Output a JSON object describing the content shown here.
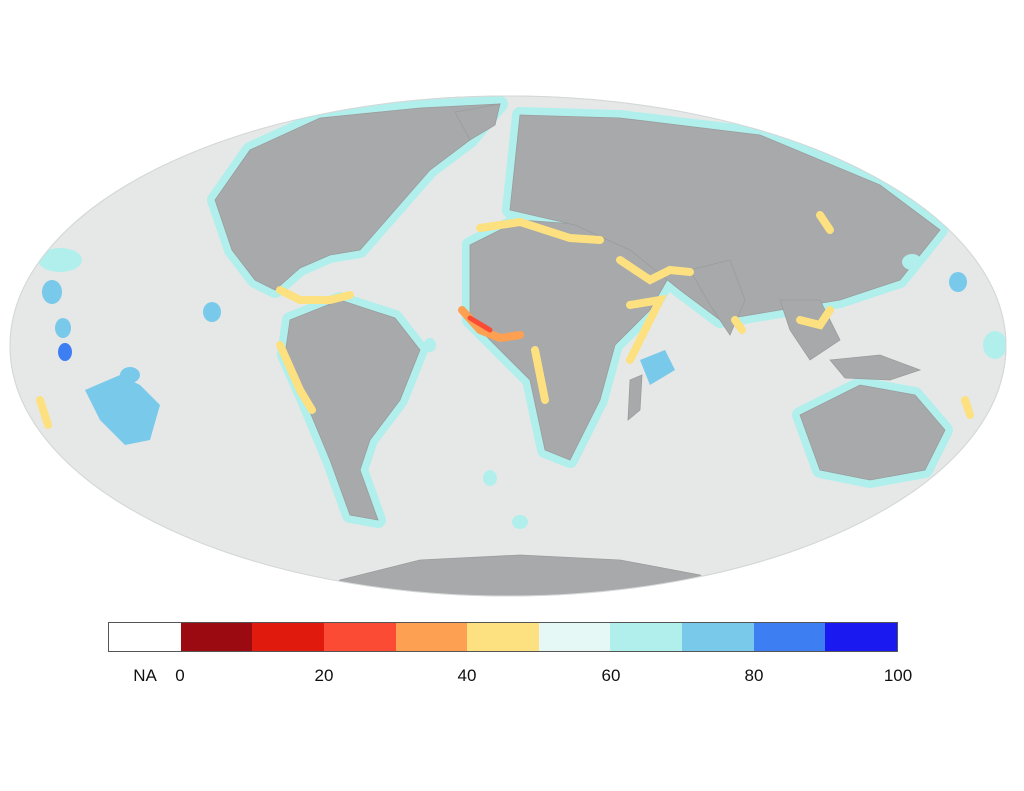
{
  "legend": {
    "na_label": "NA",
    "na_color": "#ffffff",
    "bins": [
      {
        "from": 0,
        "to": 10,
        "color": "#9b0a10"
      },
      {
        "from": 10,
        "to": 20,
        "color": "#e01a0c"
      },
      {
        "from": 20,
        "to": 30,
        "color": "#fb4b35"
      },
      {
        "from": 30,
        "to": 40,
        "color": "#fda052"
      },
      {
        "from": 40,
        "to": 50,
        "color": "#fde07f"
      },
      {
        "from": 50,
        "to": 60,
        "color": "#e5f8f5"
      },
      {
        "from": 60,
        "to": 70,
        "color": "#b0efec"
      },
      {
        "from": 70,
        "to": 80,
        "color": "#78c9ea"
      },
      {
        "from": 80,
        "to": 90,
        "color": "#3d7ff2"
      },
      {
        "from": 90,
        "to": 100,
        "color": "#1a1af0"
      }
    ],
    "tick_labels": [
      "0",
      "20",
      "40",
      "60",
      "80",
      "100"
    ]
  },
  "map": {
    "projection": "Mollweide",
    "ocean_color": "#e6e8e8",
    "land_color": "#a7a9aa",
    "coast_color": "#bdeeea"
  }
}
